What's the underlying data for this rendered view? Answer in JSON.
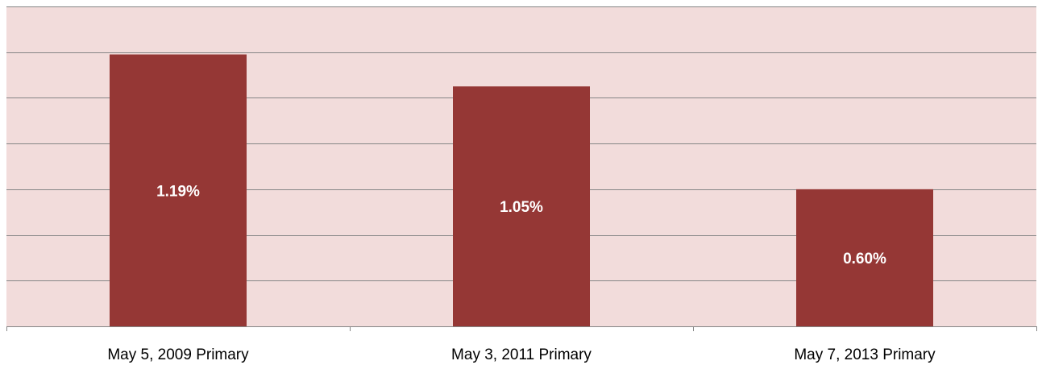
{
  "chart_data": {
    "type": "bar",
    "categories": [
      "May 5, 2009 Primary",
      "May 3, 2011 Primary",
      "May 7, 2013 Primary"
    ],
    "values": [
      1.19,
      1.05,
      0.6
    ],
    "value_labels": [
      "1.19%",
      "1.05%",
      "0.60%"
    ],
    "title": "",
    "xlabel": "",
    "ylabel": "",
    "ylim": [
      0,
      1.4
    ],
    "grid": true,
    "legend": "none",
    "colors": {
      "bar": "#953735",
      "plot_background": "#f2dcdb",
      "gridline": "#868686",
      "axis": "#868686"
    }
  }
}
